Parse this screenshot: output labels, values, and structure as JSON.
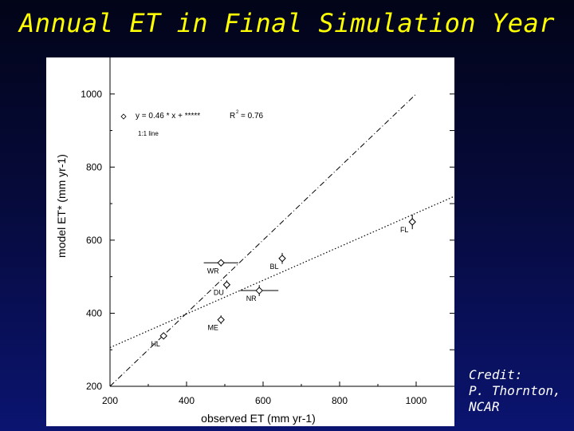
{
  "slide": {
    "title": "Annual ET in Final Simulation Year",
    "credit_lines": [
      "Credit:",
      "P. Thornton,",
      "NCAR"
    ]
  },
  "colors": {
    "title": "#ffff00",
    "background_top": "#020418",
    "background_bottom": "#0b1470",
    "plot_background": "#ffffff",
    "ink": "#000000"
  },
  "chart_data": {
    "type": "scatter",
    "title": "",
    "xlabel": "observed ET (mm yr-1)",
    "ylabel": "model ET* (mm yr-1)",
    "xlim": [
      200,
      1100
    ],
    "ylim": [
      200,
      1100
    ],
    "x_ticks": [
      200,
      400,
      600,
      800,
      1000
    ],
    "y_ticks": [
      200,
      400,
      600,
      800,
      1000
    ],
    "grid": false,
    "legend_position": "top-left",
    "legend": {
      "fit_label": "y = 0.46 * x + *****",
      "r2_label": "R",
      "r2_value": "= 0.76",
      "identity_label": "1:1 line"
    },
    "fit_line": {
      "slope": 0.46,
      "intercept": 214,
      "x_range": [
        200,
        1100
      ]
    },
    "identity_line": {
      "x_range": [
        200,
        1000
      ]
    },
    "points": [
      {
        "label": "HL",
        "x": 340,
        "y": 338,
        "xerr": 0,
        "yerr": 0
      },
      {
        "label": "ME",
        "x": 490,
        "y": 382,
        "xerr": 0,
        "yerr": 12
      },
      {
        "label": "DU",
        "x": 505,
        "y": 478,
        "xerr": 0,
        "yerr": 12
      },
      {
        "label": "WR",
        "x": 490,
        "y": 538,
        "xerr": 45,
        "yerr": 0
      },
      {
        "label": "NR",
        "x": 590,
        "y": 462,
        "xerr": 50,
        "yerr": 15
      },
      {
        "label": "BL",
        "x": 650,
        "y": 550,
        "xerr": 0,
        "yerr": 15
      },
      {
        "label": "FL",
        "x": 990,
        "y": 650,
        "xerr": 0,
        "yerr": 20
      }
    ]
  }
}
